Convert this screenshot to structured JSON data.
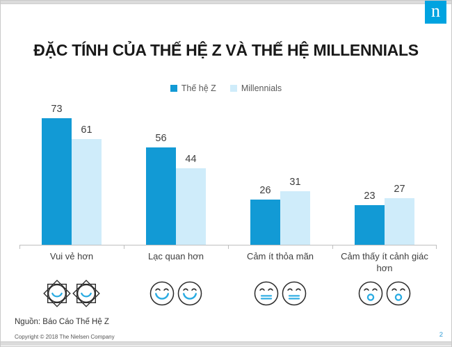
{
  "page": {
    "logo_letter": "n",
    "title": "ĐẶC TÍNH CỦA THẾ HỆ Z VÀ THẾ HỆ MILLENNIALS",
    "source": "Nguồn: Báo Cáo Thế Hệ Z",
    "copyright": "Copyright © 2018 The Nielsen Company",
    "page_number": "2"
  },
  "colors": {
    "gen_z_bar": "#129AD5",
    "millennials_bar": "#CFECFA",
    "logo_background": "#00A3E0",
    "axis_line": "#BFBFBF",
    "icon_outline": "#2B2B2B",
    "icon_accent_blue": "#29ABE2",
    "page_number_text": "#2E9BD6",
    "value_label_text": "#3D3D3D",
    "legend_text": "#595959"
  },
  "chart_data": {
    "type": "bar",
    "title": "ĐẶC TÍNH CỦA THẾ HỆ Z VÀ THẾ HỆ MILLENNIALS",
    "categories": [
      "Vui vẻ hơn",
      "Lạc quan hơn",
      "Cảm ít thỏa mãn",
      "Cảm thấy ít cảnh giác hơn"
    ],
    "series": [
      {
        "id": "gen-z",
        "name": "Thế hệ Z",
        "color": "#129AD5",
        "values": [
          73,
          56,
          26,
          23
        ]
      },
      {
        "id": "millennials",
        "name": "Millennials",
        "color": "#CFECFA",
        "values": [
          61,
          44,
          31,
          27
        ]
      }
    ],
    "ylim": [
      0,
      80
    ],
    "grid": false,
    "legend_position": "top-center",
    "value_labels": true,
    "category_icons": [
      "sun-smile-icon",
      "happy-face-icon",
      "neutral-face-icon",
      "surprised-face-icon"
    ]
  }
}
